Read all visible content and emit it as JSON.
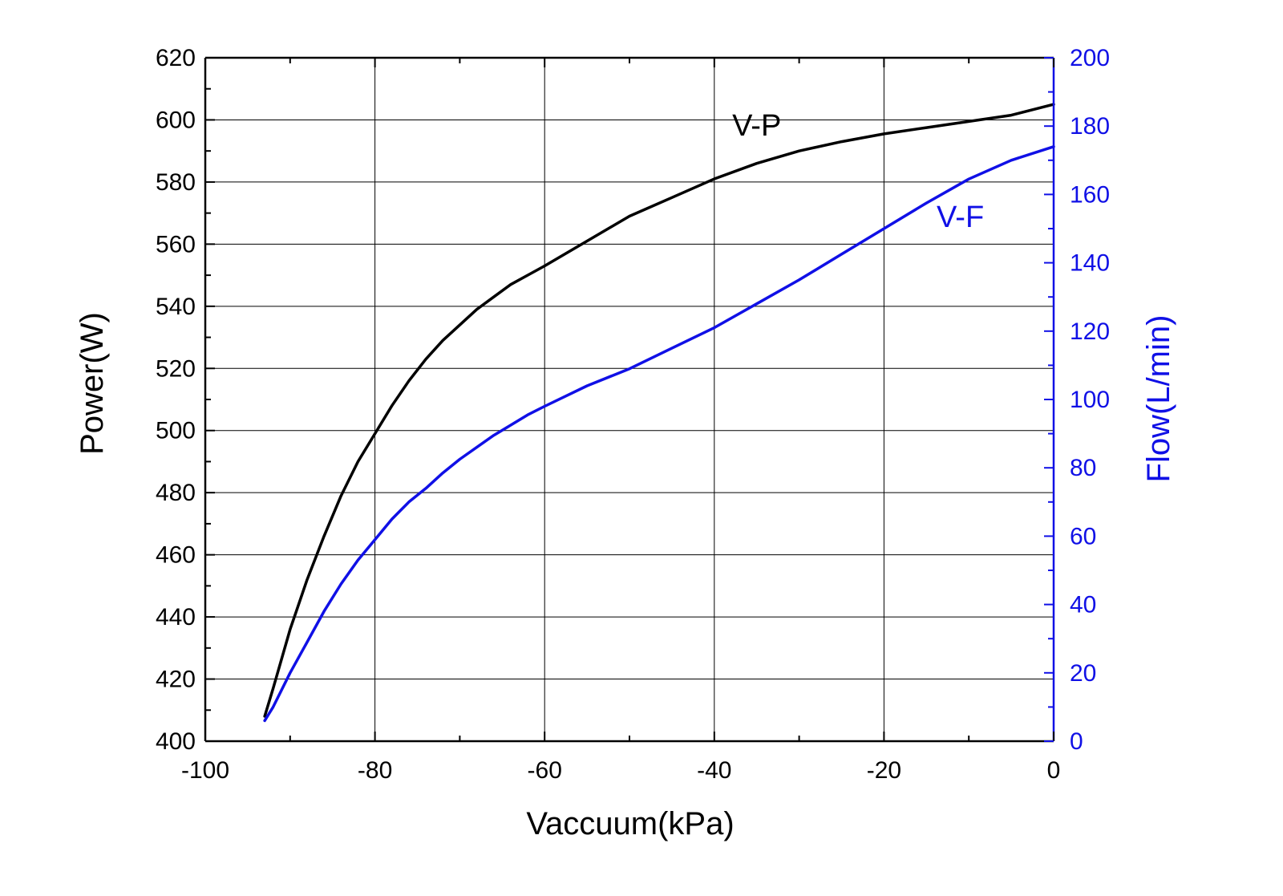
{
  "chart_data": {
    "type": "line",
    "title": "",
    "xlabel": "Vaccuum(kPa)",
    "ylabel": "Power(W)",
    "y2label": "Flow(L/min)",
    "xlim": [
      -100,
      0
    ],
    "ylim": [
      400,
      620
    ],
    "y2lim": [
      0,
      200
    ],
    "xticks": [
      -100,
      -80,
      -60,
      -40,
      -20,
      0
    ],
    "yticks": [
      400,
      420,
      440,
      460,
      480,
      500,
      520,
      540,
      560,
      580,
      600,
      620
    ],
    "y2ticks": [
      0,
      20,
      40,
      60,
      80,
      100,
      120,
      140,
      160,
      180,
      200
    ],
    "grid": true,
    "legend": "none",
    "colors": {
      "primary": "#000000",
      "secondary": "#1010e6"
    },
    "series": [
      {
        "name": "V-P",
        "axis": "left",
        "color": "#000000",
        "x": [
          -93,
          -92,
          -90,
          -88,
          -86,
          -84,
          -82,
          -80,
          -78,
          -76,
          -74,
          -72,
          -70,
          -68,
          -66,
          -64,
          -62,
          -60,
          -55,
          -50,
          -45,
          -40,
          -35,
          -30,
          -25,
          -20,
          -15,
          -10,
          -5,
          0
        ],
        "y": [
          408,
          417,
          436,
          452,
          466,
          479,
          490,
          499,
          508,
          516,
          523,
          529,
          534,
          539,
          543,
          547,
          550,
          553,
          561,
          569,
          575,
          581,
          586,
          590,
          593,
          595.5,
          597.5,
          599.5,
          601.5,
          605
        ]
      },
      {
        "name": "V-F",
        "axis": "right",
        "color": "#1010e6",
        "x": [
          -93,
          -92,
          -90,
          -88,
          -86,
          -84,
          -82,
          -80,
          -78,
          -76,
          -74,
          -72,
          -70,
          -68,
          -66,
          -64,
          -62,
          -60,
          -55,
          -50,
          -45,
          -40,
          -35,
          -30,
          -25,
          -20,
          -15,
          -10,
          -5,
          0
        ],
        "y": [
          6,
          10,
          20,
          29,
          38,
          46,
          53,
          59,
          65,
          70,
          74,
          78.5,
          82.5,
          86,
          89.5,
          92.5,
          95.5,
          98,
          104,
          109,
          115,
          121,
          128,
          135,
          142.5,
          150,
          157.5,
          164.5,
          170,
          174
        ]
      }
    ],
    "annotations": [
      {
        "text": "V-P",
        "x": -35,
        "y": 595,
        "axis": "left",
        "color": "#000000"
      },
      {
        "text": "V-F",
        "x": -11,
        "y": 150.5,
        "axis": "right",
        "color": "#1010e6"
      }
    ]
  }
}
